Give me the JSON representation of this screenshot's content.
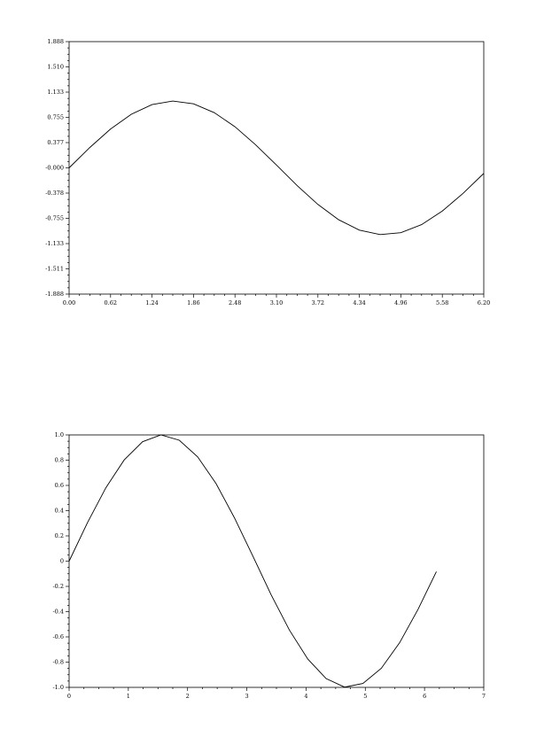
{
  "chart_data": [
    {
      "type": "line",
      "title": "",
      "xlabel": "",
      "ylabel": "",
      "xlim": [
        0.0,
        6.2
      ],
      "ylim": [
        -1.888,
        1.888
      ],
      "grid": false,
      "x_tick_labels": [
        "0.00",
        "0.62",
        "1.24",
        "1.86",
        "2.48",
        "3.10",
        "3.72",
        "4.34",
        "4.96",
        "5.58",
        "6.20"
      ],
      "y_tick_labels": [
        "1.888",
        "1.510",
        "1.133",
        "0.755",
        "0.377",
        "-0.000",
        "-0.378",
        "-0.755",
        "-1.133",
        "-1.511",
        "-1.888"
      ],
      "series": [
        {
          "x": [
            0.0,
            0.31,
            0.62,
            0.93,
            1.24,
            1.55,
            1.86,
            2.17,
            2.48,
            2.79,
            3.1,
            3.41,
            3.72,
            4.03,
            4.34,
            4.65,
            4.96,
            5.27,
            5.58,
            5.89,
            6.2
          ],
          "y": [
            0.0,
            0.305,
            0.581,
            0.802,
            0.946,
            1.0,
            0.958,
            0.826,
            0.615,
            0.344,
            0.042,
            -0.266,
            -0.547,
            -0.776,
            -0.931,
            -0.998,
            -0.969,
            -0.849,
            -0.646,
            -0.382,
            -0.083
          ]
        }
      ]
    },
    {
      "type": "line",
      "title": "",
      "xlabel": "",
      "ylabel": "",
      "xlim": [
        0,
        7
      ],
      "ylim": [
        -1.0,
        1.0
      ],
      "grid": false,
      "x_tick_labels": [
        "0",
        "1",
        "2",
        "3",
        "4",
        "5",
        "6",
        "7"
      ],
      "y_tick_labels": [
        "1.0",
        "0.8",
        "0.6",
        "0.4",
        "0.2",
        "0",
        "-0.2",
        "-0.4",
        "-0.6",
        "-0.8",
        "-1.0"
      ],
      "series": [
        {
          "x": [
            0.0,
            0.31,
            0.62,
            0.93,
            1.24,
            1.55,
            1.86,
            2.17,
            2.48,
            2.79,
            3.1,
            3.41,
            3.72,
            4.03,
            4.34,
            4.65,
            4.96,
            5.27,
            5.58,
            5.89,
            6.2
          ],
          "y": [
            0.0,
            0.305,
            0.581,
            0.802,
            0.946,
            1.0,
            0.958,
            0.826,
            0.615,
            0.344,
            0.042,
            -0.266,
            -0.547,
            -0.776,
            -0.931,
            -0.998,
            -0.969,
            -0.849,
            -0.646,
            -0.382,
            -0.083
          ]
        }
      ]
    }
  ]
}
